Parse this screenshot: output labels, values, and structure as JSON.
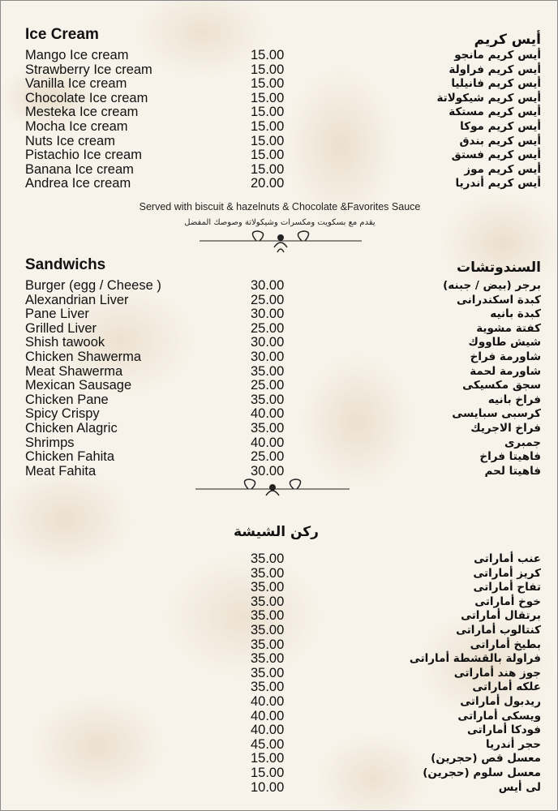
{
  "ice_cream": {
    "title_en": "Ice Cream",
    "title_ar": "أيس كريم",
    "items": [
      {
        "en": "Mango Ice cream",
        "price": "15.00",
        "ar": "أيس كريم مانجو"
      },
      {
        "en": "Strawberry Ice cream",
        "price": "15.00",
        "ar": "أيس كريم فراولة"
      },
      {
        "en": "Vanilla Ice cream",
        "price": "15.00",
        "ar": "أيس كريم فانيليا"
      },
      {
        "en": "Chocolate Ice cream",
        "price": "15.00",
        "ar": "أيس كريم شيكولاتة"
      },
      {
        "en": "Mesteka Ice cream",
        "price": "15.00",
        "ar": "أيس كريم مستكة"
      },
      {
        "en": "Mocha Ice cream",
        "price": "15.00",
        "ar": "أيس كريم موكا"
      },
      {
        "en": "Nuts Ice cream",
        "price": "15.00",
        "ar": "أيس كريم بندق"
      },
      {
        "en": "Pistachio Ice cream",
        "price": "15.00",
        "ar": "أيس كريم فستق"
      },
      {
        "en": "Banana Ice cream",
        "price": "15.00",
        "ar": "أيس كريم موز"
      },
      {
        "en": "Andrea Ice cream",
        "price": "20.00",
        "ar": "أيس كريم أندريا"
      }
    ],
    "note_en": "Served with biscuit & hazelnuts & Chocolate &Favorites Sauce",
    "note_ar": "يقدم مع بسكويت ومكسرات وشيكولاتة وصوصك المفضل"
  },
  "sandwiches": {
    "title_en": "Sandwichs",
    "title_ar": "السندوتشات",
    "items": [
      {
        "en": "Burger (egg / Cheese )",
        "price": "30.00",
        "ar": "برجر (بيض / جبنه)"
      },
      {
        "en": "Alexandrian Liver",
        "price": "25.00",
        "ar": "كبدة اسكندرانى"
      },
      {
        "en": "Pane Liver",
        "price": "30.00",
        "ar": "كبدة بانيه"
      },
      {
        "en": "Grilled Liver",
        "price": "25.00",
        "ar": "كفتة مشوية"
      },
      {
        "en": "Shish tawook",
        "price": "30.00",
        "ar": "شيش طاووك"
      },
      {
        "en": "Chicken Shawerma",
        "price": "30.00",
        "ar": "شاورمة فراخ"
      },
      {
        "en": "Meat Shawerma",
        "price": "35.00",
        "ar": "شاورمة لحمة"
      },
      {
        "en": "Mexican Sausage",
        "price": "25.00",
        "ar": "سجق مكسيكى"
      },
      {
        "en": "Chicken Pane",
        "price": "35.00",
        "ar": "فراخ بانيه"
      },
      {
        "en": "Spicy Crispy",
        "price": "40.00",
        "ar": "كرسبى سبايسى"
      },
      {
        "en": "Chicken Alagric",
        "price": "35.00",
        "ar": "فراخ الاجريك"
      },
      {
        "en": "Shrimps",
        "price": "40.00",
        "ar": "جمبرى"
      },
      {
        "en": "Chicken Fahita",
        "price": "25.00",
        "ar": "فاهيتا فراخ"
      },
      {
        "en": "Meat Fahita",
        "price": "30.00",
        "ar": "فاهيتا لحم"
      }
    ]
  },
  "shisha": {
    "title_ar": "ركن الشيشة",
    "items": [
      {
        "price": "35.00",
        "ar": "عنب أماراتى"
      },
      {
        "price": "35.00",
        "ar": "كريز أماراتى"
      },
      {
        "price": "35.00",
        "ar": "تفاح أماراتى"
      },
      {
        "price": "35.00",
        "ar": "خوخ أماراتى"
      },
      {
        "price": "35.00",
        "ar": "برتقال أماراتى"
      },
      {
        "price": "35.00",
        "ar": "كنتالوب أماراتى"
      },
      {
        "price": "35.00",
        "ar": "بطيخ أماراتى"
      },
      {
        "price": "35.00",
        "ar": "فراولة بالقشطة أماراتى"
      },
      {
        "price": "35.00",
        "ar": "جوز هند أماراتى"
      },
      {
        "price": "35.00",
        "ar": "علكه أماراتى"
      },
      {
        "price": "40.00",
        "ar": "ريدبول أماراتى"
      },
      {
        "price": "40.00",
        "ar": "ويسكى أماراتى"
      },
      {
        "price": "40.00",
        "ar": "فودكا أماراتى"
      },
      {
        "price": "45.00",
        "ar": "حجر أندريا"
      },
      {
        "price": "15.00",
        "ar": "معسل قص (حجرين)"
      },
      {
        "price": "15.00",
        "ar": "معسل سلوم (حجرين)"
      },
      {
        "price": "10.00",
        "ar": "لى أيس"
      }
    ]
  }
}
